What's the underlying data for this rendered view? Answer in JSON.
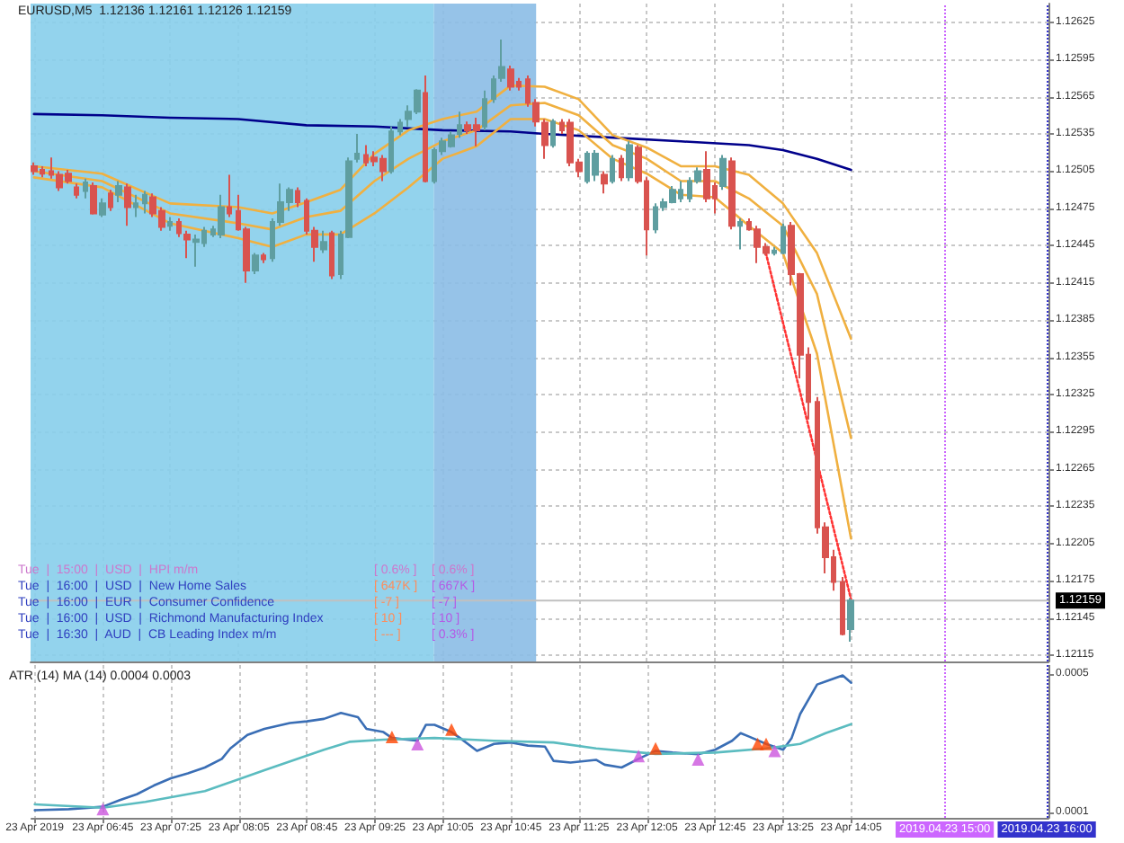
{
  "chart_data": [
    {
      "type": "candlestick",
      "title": "EURUSD,M5  1.12136 1.12161 1.12126 1.12159",
      "x": [
        "2019-04-23T06:05",
        "2019-04-23T06:10",
        "2019-04-23T06:15",
        "2019-04-23T06:20",
        "2019-04-23T06:25",
        "2019-04-23T06:30",
        "2019-04-23T06:35",
        "2019-04-23T06:40",
        "2019-04-23T06:45",
        "2019-04-23T06:50",
        "2019-04-23T06:55",
        "2019-04-23T07:00",
        "2019-04-23T07:05",
        "2019-04-23T07:10",
        "2019-04-23T07:15",
        "2019-04-23T07:20",
        "2019-04-23T07:25",
        "2019-04-23T07:30",
        "2019-04-23T07:35",
        "2019-04-23T07:40",
        "2019-04-23T07:45",
        "2019-04-23T07:50",
        "2019-04-23T07:55",
        "2019-04-23T08:00",
        "2019-04-23T08:05",
        "2019-04-23T08:10",
        "2019-04-23T08:15",
        "2019-04-23T08:20",
        "2019-04-23T08:25",
        "2019-04-23T08:30",
        "2019-04-23T08:35",
        "2019-04-23T08:40",
        "2019-04-23T08:45",
        "2019-04-23T08:50",
        "2019-04-23T08:55",
        "2019-04-23T09:00",
        "2019-04-23T09:05",
        "2019-04-23T09:10",
        "2019-04-23T09:15",
        "2019-04-23T09:20",
        "2019-04-23T09:25",
        "2019-04-23T09:30",
        "2019-04-23T09:35",
        "2019-04-23T09:40",
        "2019-04-23T09:45",
        "2019-04-23T09:50",
        "2019-04-23T09:55",
        "2019-04-23T10:00",
        "2019-04-23T10:05",
        "2019-04-23T10:10",
        "2019-04-23T10:15",
        "2019-04-23T10:20",
        "2019-04-23T10:25",
        "2019-04-23T10:30",
        "2019-04-23T10:35",
        "2019-04-23T10:40",
        "2019-04-23T10:45",
        "2019-04-23T10:50",
        "2019-04-23T10:55",
        "2019-04-23T11:00",
        "2019-04-23T11:05",
        "2019-04-23T11:10",
        "2019-04-23T11:15",
        "2019-04-23T11:20",
        "2019-04-23T11:25",
        "2019-04-23T11:30",
        "2019-04-23T11:35",
        "2019-04-23T11:40",
        "2019-04-23T11:45",
        "2019-04-23T11:50",
        "2019-04-23T11:55",
        "2019-04-23T12:00",
        "2019-04-23T12:05",
        "2019-04-23T12:10",
        "2019-04-23T12:15",
        "2019-04-23T12:20",
        "2019-04-23T12:25",
        "2019-04-23T12:30",
        "2019-04-23T12:35",
        "2019-04-23T12:40",
        "2019-04-23T12:45",
        "2019-04-23T12:50",
        "2019-04-23T12:55",
        "2019-04-23T13:00",
        "2019-04-23T13:05",
        "2019-04-23T13:10",
        "2019-04-23T13:15",
        "2019-04-23T13:20",
        "2019-04-23T13:25",
        "2019-04-23T13:30",
        "2019-04-23T13:35",
        "2019-04-23T13:40",
        "2019-04-23T13:45",
        "2019-04-23T13:50",
        "2019-04-23T13:55",
        "2019-04-23T14:00",
        "2019-04-23T14:05"
      ],
      "ohlc": [
        [
          1.12509,
          1.12512,
          1.12502,
          1.12505
        ],
        [
          1.12506,
          1.12509,
          1.125,
          1.12503
        ],
        [
          1.12505,
          1.12516,
          1.12499,
          1.12502
        ],
        [
          1.12502,
          1.12505,
          1.12489,
          1.12492
        ],
        [
          1.12503,
          1.12506,
          1.12495,
          1.12497
        ],
        [
          1.12492,
          1.12495,
          1.12483,
          1.12486
        ],
        [
          1.12489,
          1.12499,
          1.12483,
          1.12496
        ],
        [
          1.12493,
          1.12496,
          1.1247,
          1.12471
        ],
        [
          1.1247,
          1.12483,
          1.12468,
          1.12479
        ],
        [
          1.12487,
          1.1249,
          1.12473,
          1.12476
        ],
        [
          1.12486,
          1.12497,
          1.1248,
          1.12493
        ],
        [
          1.12492,
          1.12495,
          1.12461,
          1.12476
        ],
        [
          1.12476,
          1.12486,
          1.12468,
          1.12479
        ],
        [
          1.12479,
          1.12489,
          1.12471,
          1.12486
        ],
        [
          1.12484,
          1.12487,
          1.12468,
          1.12471
        ],
        [
          1.12473,
          1.12476,
          1.12457,
          1.1246
        ],
        [
          1.12461,
          1.12468,
          1.12457,
          1.12464
        ],
        [
          1.12464,
          1.12467,
          1.12452,
          1.12455
        ],
        [
          1.12454,
          1.12457,
          1.12435,
          1.1245
        ],
        [
          1.12448,
          1.12454,
          1.12428,
          1.1245
        ],
        [
          1.12447,
          1.1246,
          1.12444,
          1.12457
        ],
        [
          1.12454,
          1.12461,
          1.12452,
          1.12458
        ],
        [
          1.12454,
          1.12486,
          1.12451,
          1.12476
        ],
        [
          1.12476,
          1.12502,
          1.12468,
          1.12471
        ],
        [
          1.12473,
          1.12486,
          1.12457,
          1.12458
        ],
        [
          1.12458,
          1.1246,
          1.12415,
          1.12425
        ],
        [
          1.12425,
          1.12439,
          1.12422,
          1.12437
        ],
        [
          1.12437,
          1.12439,
          1.12431,
          1.12434
        ],
        [
          1.12435,
          1.12467,
          1.12432,
          1.12464
        ],
        [
          1.12464,
          1.12495,
          1.12461,
          1.1248
        ],
        [
          1.1248,
          1.12492,
          1.12473,
          1.1249
        ],
        [
          1.12489,
          1.12492,
          1.12476,
          1.1248
        ],
        [
          1.12481,
          1.12483,
          1.12454,
          1.12457
        ],
        [
          1.12457,
          1.1246,
          1.12432,
          1.12444
        ],
        [
          1.12442,
          1.12457,
          1.12439,
          1.12448
        ],
        [
          1.12455,
          1.12457,
          1.12418,
          1.12421
        ],
        [
          1.12422,
          1.12457,
          1.12418,
          1.12454
        ],
        [
          1.12452,
          1.12516,
          1.12451,
          1.12513
        ],
        [
          1.12515,
          1.12535,
          1.12512,
          1.12519
        ],
        [
          1.12518,
          1.12526,
          1.12509,
          1.12512
        ],
        [
          1.12516,
          1.12521,
          1.12509,
          1.12513
        ],
        [
          1.12515,
          1.12518,
          1.12497,
          1.12505
        ],
        [
          1.12505,
          1.12541,
          1.12503,
          1.12537
        ],
        [
          1.12537,
          1.12547,
          1.12534,
          1.12544
        ],
        [
          1.12547,
          1.12558,
          1.12541,
          1.12553
        ],
        [
          1.12553,
          1.12571,
          1.12551,
          1.1257
        ],
        [
          1.12568,
          1.12582,
          1.12496,
          1.12497
        ],
        [
          1.12497,
          1.12524,
          1.12495,
          1.12522
        ],
        [
          1.12521,
          1.12532,
          1.12518,
          1.12529
        ],
        [
          1.12525,
          1.12537,
          1.12524,
          1.12534
        ],
        [
          1.12535,
          1.12553,
          1.12532,
          1.12542
        ],
        [
          1.12542,
          1.12545,
          1.12535,
          1.12538
        ],
        [
          1.12542,
          1.12548,
          1.12525,
          1.12538
        ],
        [
          1.12541,
          1.1257,
          1.12538,
          1.12563
        ],
        [
          1.12563,
          1.12582,
          1.1256,
          1.12579
        ],
        [
          1.1258,
          1.12611,
          1.12577,
          1.12589
        ],
        [
          1.12587,
          1.1259,
          1.1257,
          1.12573
        ],
        [
          1.12577,
          1.1258,
          1.1257,
          1.12573
        ],
        [
          1.12579,
          1.12582,
          1.12557,
          1.1256
        ],
        [
          1.1256,
          1.12563,
          1.12541,
          1.12545
        ],
        [
          1.12544,
          1.12547,
          1.12515,
          1.12526
        ],
        [
          1.12526,
          1.12547,
          1.12524,
          1.12545
        ],
        [
          1.12544,
          1.12547,
          1.12535,
          1.12538
        ],
        [
          1.12544,
          1.12547,
          1.12509,
          1.12512
        ],
        [
          1.12512,
          1.12515,
          1.125,
          1.12505
        ],
        [
          1.12497,
          1.12521,
          1.12495,
          1.12519
        ],
        [
          1.12502,
          1.12522,
          1.12497,
          1.12519
        ],
        [
          1.12502,
          1.12505,
          1.12487,
          1.12495
        ],
        [
          1.12497,
          1.12518,
          1.12495,
          1.12515
        ],
        [
          1.12515,
          1.12518,
          1.12497,
          1.125
        ],
        [
          1.125,
          1.12529,
          1.12497,
          1.12526
        ],
        [
          1.12524,
          1.12526,
          1.12495,
          1.12497
        ],
        [
          1.12497,
          1.125,
          1.12437,
          1.12458
        ],
        [
          1.12458,
          1.12479,
          1.12455,
          1.12476
        ],
        [
          1.12476,
          1.12483,
          1.12473,
          1.1248
        ],
        [
          1.1248,
          1.12493,
          1.12479,
          1.1249
        ],
        [
          1.12483,
          1.12497,
          1.1248,
          1.1249
        ],
        [
          1.12483,
          1.125,
          1.1248,
          1.12497
        ],
        [
          1.12497,
          1.12508,
          1.12495,
          1.12505
        ],
        [
          1.12506,
          1.12521,
          1.1248,
          1.12483
        ],
        [
          1.12493,
          1.12496,
          1.12471,
          1.12483
        ],
        [
          1.12493,
          1.12518,
          1.1249,
          1.12515
        ],
        [
          1.12513,
          1.12516,
          1.12458,
          1.12461
        ],
        [
          1.12461,
          1.12467,
          1.12442,
          1.12464
        ],
        [
          1.12464,
          1.12467,
          1.12457,
          1.12458
        ],
        [
          1.12458,
          1.12461,
          1.12431,
          1.12444
        ],
        [
          1.12444,
          1.12447,
          1.12437,
          1.12439
        ],
        [
          1.12439,
          1.12444,
          1.12437,
          1.12441
        ],
        [
          1.12439,
          1.12463,
          1.12438,
          1.1246
        ],
        [
          1.12461,
          1.12464,
          1.12413,
          1.12422
        ],
        [
          1.12422,
          1.12423,
          1.12338,
          1.12357
        ],
        [
          1.12357,
          1.12363,
          1.12305,
          1.12319
        ],
        [
          1.12319,
          1.12323,
          1.12213,
          1.12218
        ],
        [
          1.12218,
          1.12222,
          1.12181,
          1.12194
        ],
        [
          1.12194,
          1.122,
          1.12167,
          1.12174
        ],
        [
          1.12174,
          1.12178,
          1.12131,
          1.12132
        ],
        [
          1.12136,
          1.12161,
          1.12126,
          1.12159
        ]
      ],
      "series": [
        {
          "type": "line",
          "color": "#00008b",
          "x": [
            "2019-04-23T06:05",
            "2019-04-23T06:45",
            "2019-04-23T07:25",
            "2019-04-23T08:05",
            "2019-04-23T08:45",
            "2019-04-23T09:25",
            "2019-04-23T10:05",
            "2019-04-23T10:45",
            "2019-04-23T11:05",
            "2019-04-23T11:45",
            "2019-04-23T12:25",
            "2019-04-23T13:05",
            "2019-04-23T13:25",
            "2019-04-23T13:45",
            "2019-04-23T14:05"
          ],
          "values": [
            1.12551,
            1.1255,
            1.12548,
            1.12547,
            1.12542,
            1.12541,
            1.12538,
            1.12537,
            1.12535,
            1.12532,
            1.12529,
            1.12526,
            1.12522,
            1.12515,
            1.12506
          ]
        },
        {
          "color": "#f0b040",
          "x": [
            "2019-04-23T06:05",
            "2019-04-23T06:45",
            "2019-04-23T07:25",
            "2019-04-23T08:05",
            "2019-04-23T08:25",
            "2019-04-23T08:45",
            "2019-04-23T09:05",
            "2019-04-23T09:25",
            "2019-04-23T09:45",
            "2019-04-23T10:05",
            "2019-04-23T10:25",
            "2019-04-23T10:45",
            "2019-04-23T11:05",
            "2019-04-23T11:25",
            "2019-04-23T11:45",
            "2019-04-23T12:05",
            "2019-04-23T12:25",
            "2019-04-23T12:45",
            "2019-04-23T13:05",
            "2019-04-23T13:25",
            "2019-04-23T13:45",
            "2019-04-23T14:05"
          ],
          "type": "line",
          "values": [
            1.12509,
            1.12503,
            1.12479,
            1.12476,
            1.12471,
            1.1248,
            1.1249,
            1.12519,
            1.12538,
            1.12547,
            1.12553,
            1.12574,
            1.12573,
            1.12563,
            1.12534,
            1.12524,
            1.12509,
            1.12509,
            1.12502,
            1.12479,
            1.12439,
            1.1237
          ]
        },
        {
          "color": "#f0b040",
          "x": [
            "2019-04-23T06:05",
            "2019-04-23T06:45",
            "2019-04-23T07:25",
            "2019-04-23T08:05",
            "2019-04-23T08:25",
            "2019-04-23T08:45",
            "2019-04-23T09:05",
            "2019-04-23T09:25",
            "2019-04-23T09:45",
            "2019-04-23T10:05",
            "2019-04-23T10:25",
            "2019-04-23T10:45",
            "2019-04-23T11:05",
            "2019-04-23T11:25",
            "2019-04-23T11:45",
            "2019-04-23T12:05",
            "2019-04-23T12:25",
            "2019-04-23T12:45",
            "2019-04-23T13:05",
            "2019-04-23T13:25",
            "2019-04-23T13:45",
            "2019-04-23T14:05"
          ],
          "type": "line",
          "values": [
            1.12505,
            1.12497,
            1.12471,
            1.12463,
            1.12458,
            1.12468,
            1.12473,
            1.12497,
            1.12515,
            1.12529,
            1.12538,
            1.12558,
            1.1256,
            1.1255,
            1.12526,
            1.12515,
            1.12497,
            1.12497,
            1.12483,
            1.12461,
            1.12406,
            1.1229
          ]
        },
        {
          "color": "#f0b040",
          "x": [
            "2019-04-23T06:05",
            "2019-04-23T06:45",
            "2019-04-23T07:25",
            "2019-04-23T08:05",
            "2019-04-23T08:25",
            "2019-04-23T08:45",
            "2019-04-23T09:05",
            "2019-04-23T09:25",
            "2019-04-23T09:45",
            "2019-04-23T10:05",
            "2019-04-23T10:25",
            "2019-04-23T10:45",
            "2019-04-23T11:05",
            "2019-04-23T11:25",
            "2019-04-23T11:45",
            "2019-04-23T12:05",
            "2019-04-23T12:25",
            "2019-04-23T12:45",
            "2019-04-23T13:05",
            "2019-04-23T13:25",
            "2019-04-23T13:45",
            "2019-04-23T14:05"
          ],
          "type": "line",
          "values": [
            1.125,
            1.12492,
            1.12463,
            1.12451,
            1.12444,
            1.12454,
            1.12454,
            1.12471,
            1.12492,
            1.12515,
            1.12525,
            1.12547,
            1.12547,
            1.12538,
            1.12515,
            1.12503,
            1.12486,
            1.12484,
            1.12461,
            1.12439,
            1.12358,
            1.12209
          ]
        },
        {
          "type": "line",
          "color": "#ff3333",
          "line_style": "dotted",
          "x": [
            "2019-04-23T13:15",
            "2019-04-23T14:05"
          ],
          "values": [
            1.12439,
            1.1216
          ]
        }
      ],
      "xlim": [
        "2019-04-23T06:03",
        "2019-04-23T16:01"
      ],
      "xticks": [
        {
          "value": "2019-04-23T06:05",
          "label": null
        },
        {
          "value": "2019-04-23T06:45",
          "label": null
        },
        {
          "value": "2019-04-23T07:25",
          "label": null
        },
        {
          "value": "2019-04-23T08:05",
          "label": null
        },
        {
          "value": "2019-04-23T08:45",
          "label": null
        },
        {
          "value": "2019-04-23T09:25",
          "label": null
        },
        {
          "value": "2019-04-23T10:05",
          "label": null
        },
        {
          "value": "2019-04-23T10:45",
          "label": null
        },
        {
          "value": "2019-04-23T11:25",
          "label": null
        },
        {
          "value": "2019-04-23T12:05",
          "label": null
        },
        {
          "value": "2019-04-23T12:45",
          "label": null
        },
        {
          "value": "2019-04-23T13:25",
          "label": null
        },
        {
          "value": "2019-04-23T14:05",
          "label": null
        }
      ],
      "ylim": [
        1.1211,
        1.1264
      ],
      "yticks": [
        1.12115,
        1.12145,
        1.12175,
        1.12205,
        1.12235,
        1.12265,
        1.12295,
        1.12325,
        1.12355,
        1.12385,
        1.12415,
        1.12445,
        1.12475,
        1.12505,
        1.12535,
        1.12565,
        1.12595,
        1.12625
      ],
      "grid": true,
      "tick_labels": "y",
      "marker": "none",
      "ref_lines": [
        {
          "axis": "x",
          "value": "2019-04-23T15:00",
          "color": "#cc66ff",
          "line_style": "dotted"
        },
        {
          "axis": "x",
          "value": "2019-04-23T16:00",
          "color": "#3333cc",
          "line_style": "dotted"
        },
        {
          "axis": "y",
          "value": 1.12159,
          "label": "1.12159",
          "color": "#c0c0c0"
        }
      ],
      "bands": [
        {
          "axis": "x",
          "from": "2019-04-23T06:03",
          "to": "2019-04-23T10:00",
          "color": "#87ceeb"
        },
        {
          "axis": "x",
          "from": "2019-04-23T10:00",
          "to": "2019-04-23T11:00",
          "color": "#8bbde6"
        }
      ],
      "annotations": [
        "Tue  |  15:00  |  USD  |  HPI m/m",
        "[ 0.6% ]",
        "[ 0.6% ]",
        "Tue  |  16:00  |  USD  |  New Home Sales",
        "[ 647K ]",
        "[ 667K ]",
        "Tue  |  16:00  |  EUR  |  Consumer Confidence",
        "[ -7 ]",
        "[ -7 ]",
        "Tue  |  16:00  |  USD  |  Richmond Manufacturing Index",
        "[ 10 ]",
        "[ 10 ]",
        "Tue  |  16:30  |  AUD  |  CB Leading Index m/m",
        "[ --- ]",
        "[ 0.3% ]"
      ]
    },
    {
      "type": "line",
      "title": "ATR (14) MA (14) 0.0004 0.0003",
      "series": [
        {
          "color": "#3a6eb5",
          "x": [
            "2019-04-23T06:05",
            "2019-04-23T06:25",
            "2019-04-23T06:45",
            "2019-04-23T06:55",
            "2019-04-23T07:05",
            "2019-04-23T07:15",
            "2019-04-23T07:25",
            "2019-04-23T07:35",
            "2019-04-23T07:45",
            "2019-04-23T07:55",
            "2019-04-23T08:00",
            "2019-04-23T08:10",
            "2019-04-23T08:20",
            "2019-04-23T08:35",
            "2019-04-23T08:45",
            "2019-04-23T08:55",
            "2019-04-23T09:05",
            "2019-04-23T09:15",
            "2019-04-23T09:20",
            "2019-04-23T09:30",
            "2019-04-23T09:35",
            "2019-04-23T09:50",
            "2019-04-23T09:55",
            "2019-04-23T10:00",
            "2019-04-23T10:10",
            "2019-04-23T10:15",
            "2019-04-23T10:25",
            "2019-04-23T10:35",
            "2019-04-23T10:45",
            "2019-04-23T10:55",
            "2019-04-23T11:05",
            "2019-04-23T11:10",
            "2019-04-23T11:20",
            "2019-04-23T11:35",
            "2019-04-23T11:40",
            "2019-04-23T11:50",
            "2019-04-23T12:00",
            "2019-04-23T12:10",
            "2019-04-23T12:20",
            "2019-04-23T12:35",
            "2019-04-23T12:45",
            "2019-04-23T12:55",
            "2019-04-23T13:00",
            "2019-04-23T13:05",
            "2019-04-23T13:15",
            "2019-04-23T13:25",
            "2019-04-23T13:30",
            "2019-04-23T13:35",
            "2019-04-23T13:45",
            "2019-04-23T13:50",
            "2019-04-23T14:00",
            "2019-04-23T14:05"
          ],
          "values": [
            0.000107,
            0.00011,
            0.000117,
            0.000136,
            0.000153,
            0.000178,
            0.000199,
            0.000213,
            0.00023,
            0.000255,
            0.000285,
            0.000324,
            0.000341,
            0.000358,
            0.000363,
            0.00037,
            0.000387,
            0.000375,
            0.000341,
            0.000332,
            0.000315,
            0.000307,
            0.000353,
            0.000353,
            0.000332,
            0.000315,
            0.000278,
            0.000298,
            0.000302,
            0.000293,
            0.00029,
            0.000249,
            0.000244,
            0.000252,
            0.000238,
            0.00023,
            0.000255,
            0.000278,
            0.000273,
            0.000268,
            0.000281,
            0.000307,
            0.000329,
            0.000319,
            0.000298,
            0.000281,
            0.000315,
            0.000384,
            0.000469,
            0.000478,
            0.000495,
            0.000474
          ]
        },
        {
          "color": "#5bbcc0",
          "x": [
            "2019-04-23T06:05",
            "2019-04-23T06:45",
            "2019-04-23T07:10",
            "2019-04-23T07:45",
            "2019-04-23T08:20",
            "2019-04-23T08:55",
            "2019-04-23T09:10",
            "2019-04-23T09:30",
            "2019-04-23T10:00",
            "2019-04-23T10:35",
            "2019-04-23T11:10",
            "2019-04-23T11:35",
            "2019-04-23T12:10",
            "2019-04-23T12:45",
            "2019-04-23T13:15",
            "2019-04-23T13:35",
            "2019-04-23T13:50",
            "2019-04-23T14:05"
          ],
          "values": [
            0.000124,
            0.000114,
            0.000131,
            0.000162,
            0.000222,
            0.000281,
            0.000304,
            0.00031,
            0.000315,
            0.000307,
            0.000302,
            0.000285,
            0.000269,
            0.000273,
            0.000285,
            0.000298,
            0.000329,
            0.000355
          ]
        },
        {
          "type": "scatter",
          "marker": "triangle",
          "color": "#cc55dd",
          "x": [
            "2019-04-23T06:45",
            "2019-04-23T09:50",
            "2019-04-23T12:00",
            "2019-04-23T12:35",
            "2019-04-23T13:20"
          ],
          "values": [
            0.00011,
            0.000297,
            0.000263,
            0.000253,
            0.000278
          ]
        },
        {
          "type": "scatter",
          "marker": "triangle",
          "color": "#ff4500",
          "x": [
            "2019-04-23T09:35",
            "2019-04-23T10:10",
            "2019-04-23T12:10",
            "2019-04-23T13:10",
            "2019-04-23T13:15"
          ],
          "values": [
            0.000318,
            0.000339,
            0.000285,
            0.000298,
            0.000298
          ]
        }
      ],
      "xlim": [
        "2019-04-23T06:03",
        "2019-04-23T16:01"
      ],
      "xticks": [
        {
          "value": "2019-04-23T06:05",
          "label": "23 Apr 2019"
        },
        {
          "value": "2019-04-23T06:45",
          "label": "23 Apr 06:45"
        },
        {
          "value": "2019-04-23T07:25",
          "label": "23 Apr 07:25"
        },
        {
          "value": "2019-04-23T08:05",
          "label": "23 Apr 08:05"
        },
        {
          "value": "2019-04-23T08:45",
          "label": "23 Apr 08:45"
        },
        {
          "value": "2019-04-23T09:25",
          "label": "23 Apr 09:25"
        },
        {
          "value": "2019-04-23T10:05",
          "label": "23 Apr 10:05"
        },
        {
          "value": "2019-04-23T10:45",
          "label": "23 Apr 10:45"
        },
        {
          "value": "2019-04-23T11:25",
          "label": "23 Apr 11:25"
        },
        {
          "value": "2019-04-23T12:05",
          "label": "23 Apr 12:05"
        },
        {
          "value": "2019-04-23T12:45",
          "label": "23 Apr 12:45"
        },
        {
          "value": "2019-04-23T13:25",
          "label": "23 Apr 13:25"
        },
        {
          "value": "2019-04-23T14:05",
          "label": "23 Apr 14:05"
        }
      ],
      "ylim": [
        8.5e-05,
        0.000525
      ],
      "yticks": [
        0.0001,
        0.0005
      ],
      "grid": "x",
      "marker": "none",
      "ref_lines": [
        {
          "axis": "x",
          "value": "2019-04-23T15:00",
          "label": "2019.04.23 15:00",
          "color": "#cc66ff",
          "line_style": "dotted"
        },
        {
          "axis": "x",
          "value": "2019-04-23T16:00",
          "label": "2019.04.23 16:00",
          "color": "#3333cc",
          "line_style": "dotted"
        }
      ]
    }
  ]
}
